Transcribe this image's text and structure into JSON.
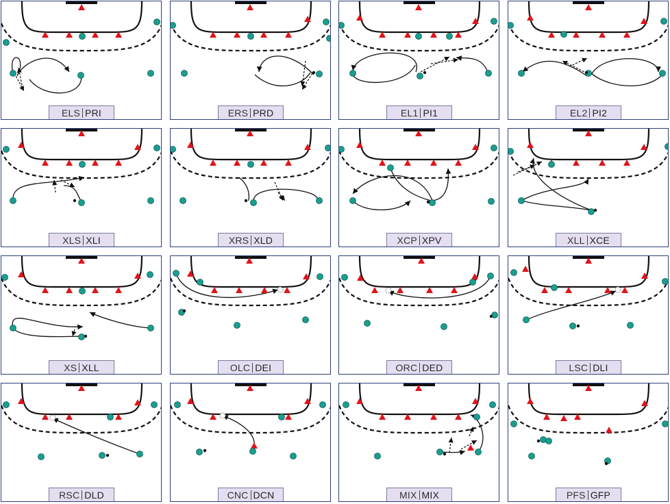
{
  "colors": {
    "player": "#1a9e8f",
    "defender": "#e0141a",
    "line": "#111111",
    "frame": "#2d3f7a",
    "label_bg": "#e4def0"
  },
  "panels": [
    {
      "a": "ELS",
      "b": "PRI",
      "paths": [
        [
          "M18,106 C10,70 40,80 24,110 C30,92 75,65 100,104",
          "a"
        ],
        [
          "M117,106 C125,140 65,145 42,115",
          "n"
        ]
      ],
      "dashed": [
        [
          20,
          106,
          34,
          132
        ],
        [
          32,
          128,
          26,
          98
        ]
      ],
      "tri": [
        [
          65,
          50
        ],
        [
          100,
          50
        ],
        [
          138,
          50
        ],
        [
          172,
          50
        ],
        [
          118,
          10
        ]
      ],
      "dots": [
        [
          119,
          52
        ],
        [
          228,
          31
        ],
        [
          8,
          61
        ],
        [
          18,
          106
        ],
        [
          117,
          109
        ],
        [
          219,
          106
        ]
      ],
      "ball": []
    },
    {
      "a": "ERS",
      "b": "PRD",
      "paths": [
        [
          "M457,108 C420,70 380,75 377,104",
          "a"
        ],
        [
          "M371,108 C400,135 440,125 452,105",
          "n"
        ]
      ],
      "dashed": [
        [
          455,
          106,
          440,
          130
        ],
        [
          445,
          88,
          440,
          125
        ]
      ],
      "tri": [
        [
          310,
          50
        ],
        [
          345,
          50
        ],
        [
          384,
          50
        ],
        [
          420,
          50
        ],
        [
          364,
          10
        ],
        [
          448,
          27
        ]
      ],
      "dots": [
        [
          365,
          52
        ],
        [
          475,
          31
        ],
        [
          251,
          36
        ],
        [
          268,
          106
        ],
        [
          465,
          107
        ],
        [
          480,
          55
        ]
      ],
      "ball": [
        [
          457,
          105
        ]
      ]
    },
    {
      "a": "EL1",
      "b": "PI1",
      "paths": [
        [
          "M606,104 C620,65 520,70 514,102",
          "a"
        ],
        [
          "M514,108 C520,125 590,125 605,94",
          "n"
        ],
        [
          "M710,102 C700,80 680,85 665,83",
          "a"
        ]
      ],
      "dashed": [
        [
          613,
          104,
          655,
          82
        ],
        [
          628,
          92,
          668,
          86
        ]
      ],
      "tri": [
        [
          557,
          50
        ],
        [
          594,
          50
        ],
        [
          632,
          50
        ],
        [
          668,
          50
        ],
        [
          610,
          10
        ],
        [
          524,
          25
        ],
        [
          693,
          30
        ]
      ],
      "dots": [
        [
          610,
          52
        ],
        [
          720,
          30
        ],
        [
          497,
          36
        ],
        [
          514,
          106
        ],
        [
          612,
          110
        ],
        [
          712,
          106
        ],
        [
          655,
          52
        ]
      ],
      "ball": [
        [
          619,
          105
        ]
      ]
    },
    {
      "a": "EL2",
      "b": "PI2",
      "paths": [
        [
          "M856,110 C820,85 790,80 762,104",
          "a"
        ],
        [
          "M862,108 C880,75 960,80 960,104",
          "a"
        ],
        [
          "M966,108 C940,135 880,125 860,104",
          "n"
        ]
      ],
      "dashed": [
        [
          856,
          106,
          820,
          88
        ],
        [
          830,
          96,
          856,
          84
        ]
      ],
      "tri": [
        [
          804,
          50
        ],
        [
          840,
          50
        ],
        [
          878,
          50
        ],
        [
          914,
          50
        ],
        [
          858,
          10
        ],
        [
          773,
          25
        ],
        [
          939,
          30
        ]
      ],
      "dots": [
        [
          822,
          49
        ],
        [
          968,
          30
        ],
        [
          744,
          36
        ],
        [
          760,
          106
        ],
        [
          858,
          106
        ],
        [
          966,
          106
        ]
      ],
      "ball": [
        [
          855,
          105
        ]
      ]
    },
    {
      "a": "XLS",
      "b": "XLI",
      "paths": [
        [
          "M18,292 C15,260 70,270 122,258",
          "a"
        ],
        [
          "M117,292 C110,280 110,270 92,270",
          "n"
        ]
      ],
      "dashed": [
        [
          80,
          280,
          78,
          262
        ],
        [
          88,
          262,
          108,
          272
        ]
      ],
      "tri": [
        [
          65,
          237
        ],
        [
          100,
          237
        ],
        [
          138,
          237
        ],
        [
          172,
          237
        ],
        [
          118,
          194
        ],
        [
          30,
          211
        ],
        [
          200,
          214
        ]
      ],
      "dots": [
        [
          119,
          239
        ],
        [
          228,
          215
        ],
        [
          8,
          217
        ],
        [
          18,
          292
        ],
        [
          118,
          295
        ],
        [
          219,
          292
        ]
      ],
      "ball": [
        [
          108,
          292
        ]
      ]
    },
    {
      "a": "XRS",
      "b": "XLD",
      "paths": [
        [
          "M369,292 C370,265 470,275 462,292",
          "n"
        ],
        [
          "M362,292 C365,270 350,260 348,258",
          "n"
        ]
      ],
      "dashed": [
        [
          400,
          265,
          412,
          292
        ],
        [
          405,
          280,
          415,
          292
        ]
      ],
      "tri": [
        [
          310,
          237
        ],
        [
          345,
          237
        ],
        [
          384,
          237
        ],
        [
          420,
          237
        ],
        [
          364,
          194
        ],
        [
          277,
          211
        ],
        [
          448,
          214
        ]
      ],
      "dots": [
        [
          365,
          239
        ],
        [
          478,
          215
        ],
        [
          251,
          217
        ],
        [
          266,
          292
        ],
        [
          369,
          295
        ],
        [
          465,
          292
        ]
      ],
      "ball": [
        [
          358,
          292
        ]
      ]
    },
    {
      "a": "XCP",
      "b": "XPV",
      "paths": [
        [
          "M569,244 C580,280 620,290 628,292",
          "n"
        ],
        [
          "M630,292 C610,240 540,250 514,282",
          "a"
        ],
        [
          "M514,292 C530,310 580,310 598,292",
          "a"
        ],
        [
          "M630,292 C650,290 655,270 653,245",
          "a"
        ]
      ],
      "dashed": [],
      "tri": [
        [
          557,
          237
        ],
        [
          594,
          237
        ],
        [
          632,
          237
        ],
        [
          668,
          237
        ],
        [
          610,
          194
        ],
        [
          524,
          211
        ],
        [
          693,
          214
        ]
      ],
      "dots": [
        [
          569,
          244
        ],
        [
          720,
          215
        ],
        [
          497,
          217
        ],
        [
          514,
          292
        ],
        [
          630,
          295
        ],
        [
          716,
          293
        ]
      ],
      "ball": [
        [
          624,
          294
        ]
      ]
    },
    {
      "a": "XLL",
      "b": "XCE",
      "paths": [
        [
          "M760,292 C790,300 830,300 862,306",
          "n"
        ],
        [
          "M862,306 C820,290 770,260 778,230",
          "a"
        ],
        [
          "M760,292 C800,270 850,275 858,260",
          "a"
        ]
      ],
      "dashed": [
        [
          748,
          255,
          790,
          235
        ],
        [
          755,
          250,
          780,
          240
        ]
      ],
      "tri": [
        [
          804,
          237
        ],
        [
          840,
          237
        ],
        [
          878,
          237
        ],
        [
          914,
          237
        ],
        [
          858,
          194
        ],
        [
          773,
          211
        ],
        [
          939,
          214
        ]
      ],
      "dots": [
        [
          804,
          239
        ],
        [
          974,
          213
        ],
        [
          744,
          220
        ],
        [
          760,
          292
        ],
        [
          862,
          308
        ]
      ],
      "ball": [
        [
          868,
          306
        ]
      ]
    },
    {
      "a": "XS",
      "b": "XLL",
      "paths": [
        [
          "M18,478 C10,445 60,480 120,476",
          "a"
        ],
        [
          "M217,478 C180,475 140,460 130,455",
          "a"
        ],
        [
          "M18,478 C30,495 100,490 120,490",
          "n"
        ]
      ],
      "dashed": [
        [
          108,
          480,
          105,
          490
        ]
      ],
      "tri": [
        [
          65,
          423
        ],
        [
          100,
          423
        ],
        [
          138,
          423
        ],
        [
          172,
          423
        ],
        [
          118,
          380
        ],
        [
          30,
          400
        ],
        [
          200,
          402
        ]
      ],
      "dots": [
        [
          119,
          424
        ],
        [
          218,
          400
        ],
        [
          6,
          404
        ],
        [
          18,
          478
        ],
        [
          118,
          491
        ],
        [
          219,
          478
        ]
      ],
      "ball": [
        [
          124,
          490
        ]
      ]
    },
    {
      "a": "OLC",
      "b": "DEI",
      "paths": [
        [
          "M256,398 C270,440 350,440 405,422",
          "a"
        ]
      ],
      "dashed": [],
      "tri": [
        [
          312,
          423
        ],
        [
          348,
          423
        ],
        [
          385,
          423
        ],
        [
          418,
          423
        ],
        [
          363,
          380
        ],
        [
          277,
          399
        ],
        [
          446,
          403
        ]
      ],
      "dots": [
        [
          256,
          398
        ],
        [
          291,
          411
        ],
        [
          466,
          403
        ],
        [
          264,
          455
        ],
        [
          345,
          474
        ],
        [
          445,
          466
        ]
      ],
      "ball": [
        [
          268,
          453
        ]
      ],
      "ghost": [
        [
          408,
          422
        ]
      ]
    },
    {
      "a": "ORC",
      "b": "DED",
      "paths": [
        [
          "M715,402 C700,440 600,440 566,424",
          "a"
        ]
      ],
      "dashed": [],
      "tri": [
        [
          546,
          423
        ],
        [
          583,
          423
        ],
        [
          626,
          423
        ],
        [
          662,
          423
        ],
        [
          614,
          380
        ],
        [
          525,
          405
        ],
        [
          692,
          403
        ]
      ],
      "dots": [
        [
          715,
          402
        ],
        [
          689,
          411
        ],
        [
          502,
          404
        ],
        [
          535,
          471
        ],
        [
          647,
          476
        ],
        [
          721,
          459
        ]
      ],
      "ball": [
        [
          716,
          461
        ]
      ],
      "ghost": [
        [
          566,
          423
        ]
      ]
    },
    {
      "a": "LSC",
      "b": "DLI",
      "paths": [
        [
          "M767,466 C810,448 860,440 898,424",
          "a"
        ]
      ],
      "dashed": [],
      "tri": [
        [
          794,
          423
        ],
        [
          829,
          423
        ],
        [
          886,
          423
        ],
        [
          911,
          423
        ],
        [
          858,
          380
        ],
        [
          766,
          392
        ],
        [
          940,
          402
        ]
      ],
      "dots": [
        [
          749,
          397
        ],
        [
          808,
          419
        ],
        [
          767,
          466
        ],
        [
          835,
          475
        ],
        [
          919,
          474
        ],
        [
          970,
          410
        ]
      ],
      "ball": [
        [
          843,
          475
        ]
      ],
      "ghost": [
        [
          901,
          422
        ]
      ]
    },
    {
      "a": "RSC",
      "b": "DLD",
      "paths": [
        [
          "M203,662 C170,650 120,630 76,610",
          "a"
        ]
      ],
      "dashed": [],
      "tri": [
        [
          65,
          608
        ],
        [
          100,
          608
        ],
        [
          172,
          608
        ],
        [
          118,
          566
        ],
        [
          30,
          585
        ],
        [
          200,
          587
        ]
      ],
      "dots": [
        [
          8,
          590
        ],
        [
          160,
          608
        ],
        [
          224,
          590
        ],
        [
          59,
          666
        ],
        [
          148,
          664
        ],
        [
          203,
          662
        ]
      ],
      "ball": [
        [
          156,
          664
        ]
      ],
      "ghost": [
        [
          76,
          609
        ]
      ]
    },
    {
      "a": "CNC",
      "b": "DCN",
      "paths": [
        [
          "M368,658 C380,630 340,612 324,606",
          "a"
        ]
      ],
      "dashed": [],
      "tri": [
        [
          310,
          608
        ],
        [
          370,
          650
        ],
        [
          420,
          608
        ],
        [
          364,
          566
        ],
        [
          277,
          585
        ],
        [
          448,
          585
        ]
      ],
      "dots": [
        [
          258,
          590
        ],
        [
          410,
          608
        ],
        [
          470,
          590
        ],
        [
          290,
          659
        ],
        [
          427,
          665
        ],
        [
          368,
          658
        ]
      ],
      "ball": [
        [
          298,
          657
        ]
      ],
      "ghost": [
        [
          324,
          606
        ]
      ]
    },
    {
      "a": "MIX",
      "b": "MIX",
      "paths": [
        [
          "M641,659 C660,660 670,660 678,658",
          "a"
        ],
        [
          "M697,659 C712,640 700,610 686,605",
          "a"
        ]
      ],
      "dashed": [
        [
          655,
          660,
          658,
          638
        ],
        [
          672,
          655,
          695,
          642
        ],
        [
          684,
          636,
          690,
          622
        ]
      ],
      "tri": [
        [
          557,
          608
        ],
        [
          594,
          608
        ],
        [
          632,
          608
        ],
        [
          668,
          608
        ],
        [
          610,
          566
        ],
        [
          524,
          585
        ],
        [
          693,
          585
        ],
        [
          686,
          653
        ]
      ],
      "dots": [
        [
          641,
          659
        ],
        [
          718,
          590
        ],
        [
          504,
          590
        ],
        [
          550,
          665
        ],
        [
          697,
          659
        ],
        [
          695,
          608
        ]
      ],
      "ball": [
        [
          648,
          662
        ]
      ]
    },
    {
      "a": "PFS",
      "b": "GFP",
      "paths": [],
      "dashed": [],
      "tri": [
        [
          797,
          608
        ],
        [
          822,
          610
        ],
        [
          842,
          608
        ],
        [
          888,
          627
        ],
        [
          858,
          566
        ],
        [
          773,
          585
        ],
        [
          940,
          588
        ]
      ],
      "dots": [
        [
          749,
          618
        ],
        [
          792,
          641
        ],
        [
          800,
          643
        ],
        [
          775,
          665
        ],
        [
          886,
          672
        ],
        [
          970,
          618
        ]
      ],
      "ball": [
        [
          785,
          643
        ],
        [
          884,
          676
        ]
      ]
    }
  ]
}
